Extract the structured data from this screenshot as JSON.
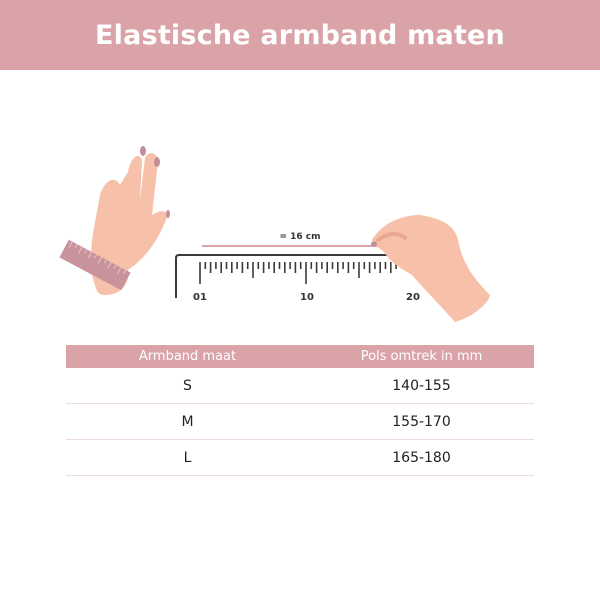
{
  "header": {
    "title": "Elastische armband maten"
  },
  "illustration": {
    "measure_label": "= 16 cm",
    "ruler_labels": [
      "01",
      "10",
      "20"
    ],
    "colors": {
      "skin": "#f7c0a8",
      "nail": "#c38e98",
      "band": "#c9939c",
      "ruler": "#3a3a3a",
      "accent": "#d9a3a8"
    }
  },
  "table": {
    "headers": [
      "Armband maat",
      "Pols omtrek in mm"
    ],
    "rows": [
      {
        "size": "S",
        "range": "140-155"
      },
      {
        "size": "M",
        "range": "155-170"
      },
      {
        "size": "L",
        "range": "165-180"
      }
    ]
  }
}
